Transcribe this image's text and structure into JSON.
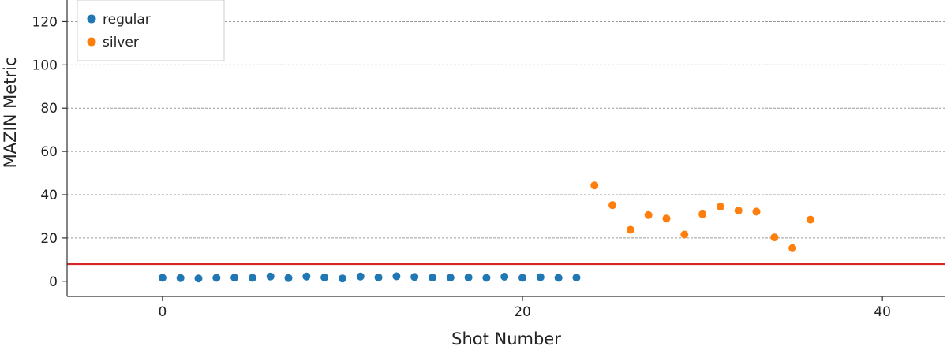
{
  "chart_data": {
    "type": "scatter",
    "title": "",
    "xlabel": "Shot Number",
    "ylabel": "MAZIN Metric",
    "xlim": [
      -5.3,
      43.5
    ],
    "ylim": [
      -7,
      130
    ],
    "xticks": [
      0,
      20,
      40
    ],
    "yticks": [
      0,
      20,
      40,
      60,
      80,
      100,
      120
    ],
    "grid": "horizontal-dotted",
    "legend_position": "top-left",
    "threshold": {
      "y": 8,
      "color": "#d62728"
    },
    "series": [
      {
        "name": "regular",
        "color": "#1f77b4",
        "x": [
          0,
          1,
          2,
          3,
          4,
          5,
          6,
          7,
          8,
          9,
          10,
          11,
          12,
          13,
          14,
          15,
          16,
          17,
          18,
          19,
          20,
          21,
          22,
          23
        ],
        "y": [
          1.6,
          1.5,
          1.3,
          1.6,
          1.7,
          1.6,
          2.2,
          1.5,
          2.2,
          1.8,
          1.3,
          2.2,
          1.8,
          2.3,
          2.0,
          1.7,
          1.7,
          1.8,
          1.6,
          2.1,
          1.6,
          1.9,
          1.6,
          1.7
        ]
      },
      {
        "name": "silver",
        "color": "#ff7f0e",
        "x": [
          24,
          25,
          26,
          27,
          28,
          29,
          30,
          31,
          32,
          33,
          34,
          35,
          36
        ],
        "y": [
          44.3,
          35.2,
          23.8,
          30.6,
          29.0,
          21.6,
          31.0,
          34.5,
          32.7,
          32.2,
          20.3,
          15.3,
          28.5
        ]
      }
    ]
  }
}
